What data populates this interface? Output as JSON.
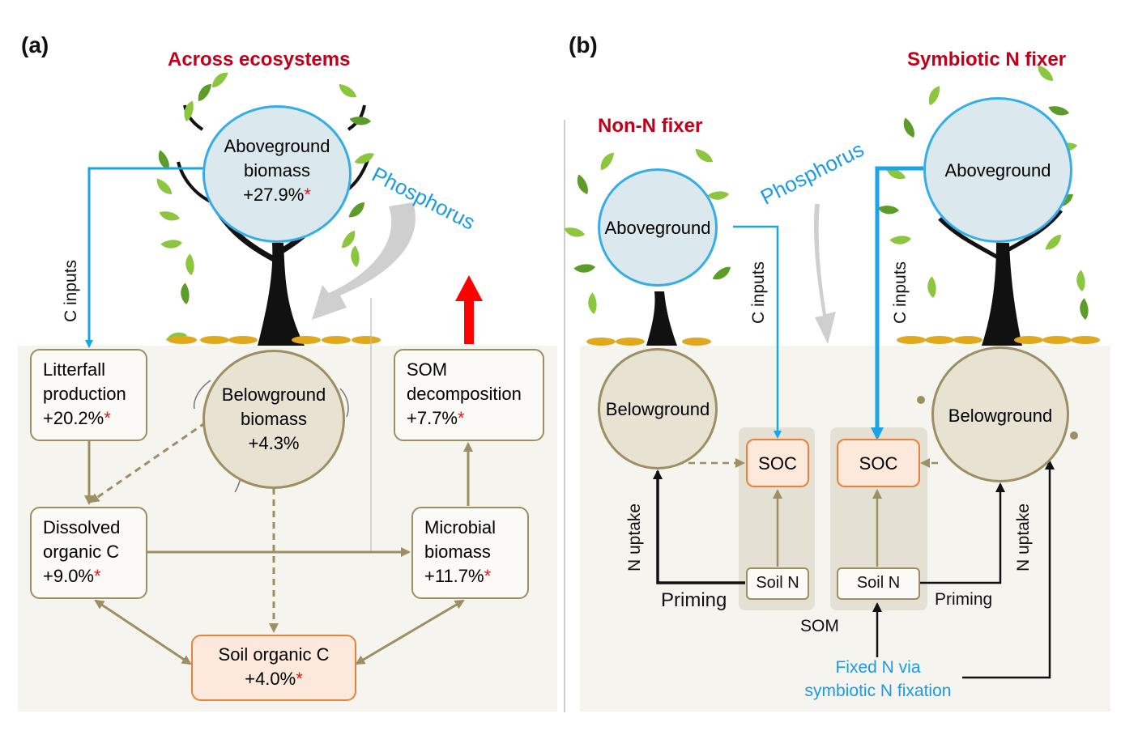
{
  "panel_a": {
    "label": "(a)",
    "title": "Across ecosystems",
    "phosphorus": "Phosphorus",
    "c_inputs": "C inputs",
    "aboveground": {
      "line1": "Aboveground",
      "line2": "biomass",
      "value": "+27.9%",
      "star": "*"
    },
    "belowground": {
      "line1": "Belowground",
      "line2": "biomass",
      "value": "+4.3%"
    },
    "litterfall": {
      "line1": "Litterfall",
      "line2": "production",
      "value": "+20.2%",
      "star": "*"
    },
    "som_decomp": {
      "line1": "SOM",
      "line2": "decomposition",
      "value": "+7.7%",
      "star": "*"
    },
    "doc": {
      "line1": "Dissolved",
      "line2": "organic C",
      "value": "+9.0%",
      "star": "*"
    },
    "microbial": {
      "line1": "Microbial",
      "line2": "biomass",
      "value": "+11.7%",
      "star": "*"
    },
    "soc": {
      "line1": "Soil organic C",
      "value": "+4.0%",
      "star": "*"
    }
  },
  "panel_b": {
    "label": "(b)",
    "non_fixer_title": "Non-N fixer",
    "fixer_title": "Symbiotic N fixer",
    "phosphorus": "Phosphorus",
    "c_inputs_left": "C inputs",
    "c_inputs_right": "C inputs",
    "above_left": "Aboveground",
    "above_right": "Aboveground",
    "below_left": "Belowground",
    "below_right": "Belowground",
    "soc_left": "SOC",
    "soc_right": "SOC",
    "soiln_left": "Soil N",
    "soiln_right": "Soil N",
    "n_uptake_left": "N uptake",
    "n_uptake_right": "N uptake",
    "priming_left": "Priming",
    "priming_right": "Priming",
    "som": "SOM",
    "fixed_n_line1": "Fixed N via",
    "fixed_n_line2": "symbiotic N fixation"
  },
  "colors": {
    "blue_flow": "#1ba5e6",
    "olive_flow": "#9c8f63",
    "orange_box": "#e9813a",
    "title_red": "#c0001a",
    "star_red": "#e01919",
    "ground": "#f5f4ef"
  }
}
